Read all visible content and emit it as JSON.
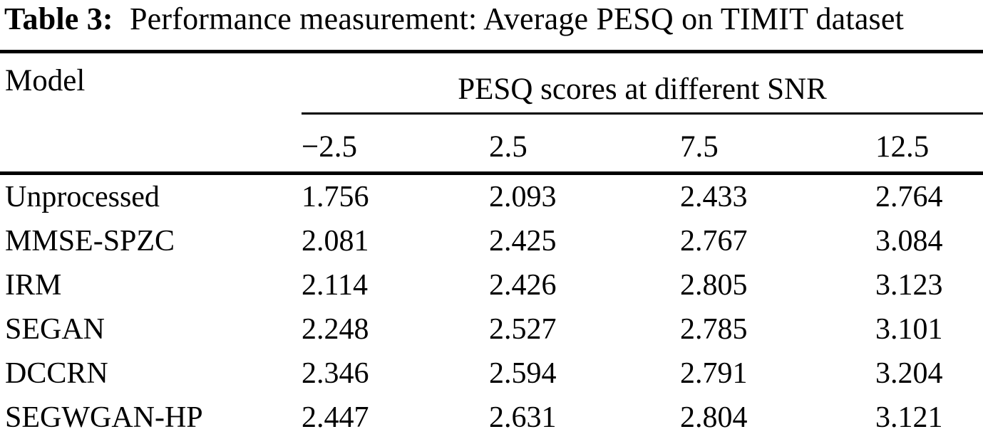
{
  "colors": {
    "text": "#000000",
    "background": "#ffffff",
    "rule": "#000000"
  },
  "caption": {
    "label": "Table 3:",
    "text": "Performance measurement: Average PESQ on TIMIT dataset"
  },
  "table": {
    "header": {
      "model_label": "Model",
      "group_label": "PESQ scores at different SNR",
      "snr_columns": [
        "−2.5",
        "2.5",
        "7.5",
        "12.5"
      ]
    },
    "rows": [
      {
        "model": "Unprocessed",
        "values": [
          "1.756",
          "2.093",
          "2.433",
          "2.764"
        ]
      },
      {
        "model": "MMSE-SPZC",
        "values": [
          "2.081",
          "2.425",
          "2.767",
          "3.084"
        ]
      },
      {
        "model": "IRM",
        "values": [
          "2.114",
          "2.426",
          "2.805",
          "3.123"
        ]
      },
      {
        "model": "SEGAN",
        "values": [
          "2.248",
          "2.527",
          "2.785",
          "3.101"
        ]
      },
      {
        "model": "DCCRN",
        "values": [
          "2.346",
          "2.594",
          "2.791",
          "3.204"
        ]
      },
      {
        "model": "SEGWGAN-HP",
        "values": [
          "2.447",
          "2.631",
          "2.804",
          "3.121"
        ]
      }
    ]
  }
}
